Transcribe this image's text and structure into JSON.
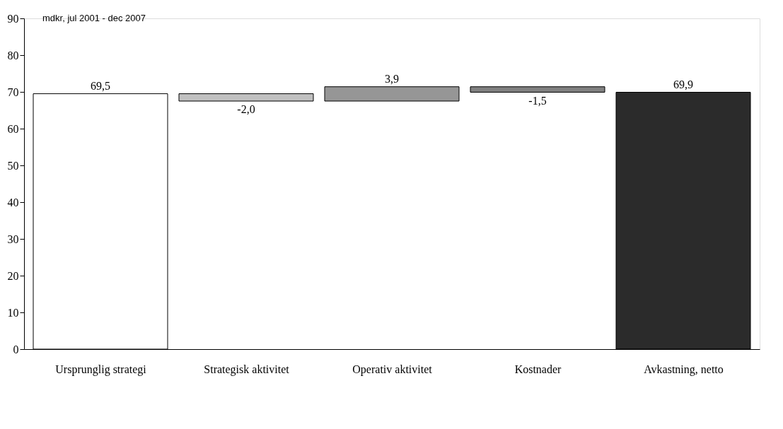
{
  "chart_data": {
    "type": "bar",
    "ylabel": "mdkr, jul 2001 - dec 2007",
    "categories": [
      "Ursprunglig strategi",
      "Strategisk aktivitet",
      "Operativ aktivitet",
      "Kostnader",
      "Avkastning, netto"
    ],
    "values": [
      69.5,
      -2.0,
      3.9,
      -1.5,
      69.9
    ],
    "base": [
      0,
      69.5,
      67.5,
      71.4,
      0
    ],
    "colors": [
      "#ffffff",
      "#c0c0c0",
      "#969696",
      "#808080",
      "#2b2b2b"
    ],
    "value_labels": [
      "69,5",
      "-2,0",
      "3,9",
      "-1,5",
      "69,9"
    ],
    "ylim": [
      0,
      90
    ],
    "yticks": [
      0,
      10,
      20,
      30,
      40,
      50,
      60,
      70,
      80,
      90
    ],
    "grid": false
  }
}
